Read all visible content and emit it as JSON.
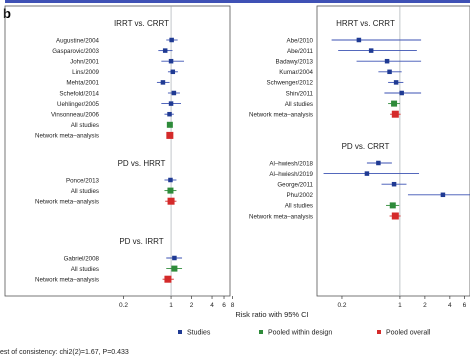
{
  "panel_letter": "b",
  "x_axis_title": "Risk ratio with 95% CI",
  "consistency_text": "est of consistency: chi2(2)=1.67, P=0.433",
  "legend": [
    {
      "label": "Studies",
      "color": "#1f3a93"
    },
    {
      "label": "Pooled within design",
      "color": "#2e8b3a"
    },
    {
      "label": "Pooled overall",
      "color": "#d42a2a"
    }
  ],
  "colors": {
    "study": "#1f3a93",
    "pooled_design": "#2e8b3a",
    "pooled_overall": "#d42a2a",
    "ci_line": "#3b52b3",
    "frame": "#555555",
    "top_band": "#3f51b5"
  },
  "chart_data": [
    {
      "type": "forest",
      "scale": "log",
      "xlim": [
        0.1,
        9
      ],
      "x_ticks": [
        0.2,
        1,
        2,
        4,
        6,
        8
      ],
      "reference_line": 1,
      "groups": [
        {
          "title": "IRRT vs. CRRT",
          "rows": [
            {
              "label": "Augustine/2004",
              "kind": "study",
              "estimate": 1.02,
              "lower": 0.85,
              "upper": 1.25
            },
            {
              "label": "Gasparovic/2003",
              "kind": "study",
              "estimate": 0.82,
              "lower": 0.65,
              "upper": 1.05
            },
            {
              "label": "John/2001",
              "kind": "study",
              "estimate": 1.0,
              "lower": 0.72,
              "upper": 1.55
            },
            {
              "label": "Lins/2009",
              "kind": "study",
              "estimate": 1.06,
              "lower": 0.9,
              "upper": 1.26
            },
            {
              "label": "Mehta/2001",
              "kind": "study",
              "estimate": 0.76,
              "lower": 0.62,
              "upper": 0.95
            },
            {
              "label": "Schefold/2014",
              "kind": "study",
              "estimate": 1.1,
              "lower": 0.9,
              "upper": 1.35
            },
            {
              "label": "Uehlinger/2005",
              "kind": "study",
              "estimate": 1.0,
              "lower": 0.72,
              "upper": 1.4
            },
            {
              "label": "Vinsonneau/2006",
              "kind": "study",
              "estimate": 0.95,
              "lower": 0.8,
              "upper": 1.1
            },
            {
              "label": "All studies",
              "kind": "pooled_design",
              "estimate": 0.96,
              "lower": 0.89,
              "upper": 1.05
            },
            {
              "label": "Network meta–analysis",
              "kind": "pooled_overall",
              "estimate": 0.96,
              "lower": 0.88,
              "upper": 1.04
            }
          ]
        },
        {
          "title": "PD vs. HRRT",
          "rows": [
            {
              "label": "Ponce/2013",
              "kind": "study",
              "estimate": 0.98,
              "lower": 0.8,
              "upper": 1.2
            },
            {
              "label": "All studies",
              "kind": "pooled_design",
              "estimate": 0.98,
              "lower": 0.8,
              "upper": 1.2
            },
            {
              "label": "Network meta–analysis",
              "kind": "pooled_overall",
              "estimate": 1.0,
              "lower": 0.82,
              "upper": 1.2
            }
          ]
        },
        {
          "title": "PD vs. IRRT",
          "rows": [
            {
              "label": "Gabriel/2008",
              "kind": "study",
              "estimate": 1.12,
              "lower": 0.85,
              "upper": 1.45
            },
            {
              "label": "All studies",
              "kind": "pooled_design",
              "estimate": 1.12,
              "lower": 0.85,
              "upper": 1.45
            },
            {
              "label": "Network meta–analysis",
              "kind": "pooled_overall",
              "estimate": 0.9,
              "lower": 0.75,
              "upper": 1.1
            }
          ]
        }
      ]
    },
    {
      "type": "forest",
      "scale": "log",
      "xlim": [
        0.1,
        7
      ],
      "x_ticks": [
        0.2,
        1,
        2,
        4,
        6
      ],
      "reference_line": 1,
      "groups": [
        {
          "title": "HRRT vs. CRRT",
          "rows": [
            {
              "label": "Abe/2010",
              "kind": "study",
              "estimate": 0.32,
              "lower": 0.15,
              "upper": 1.8
            },
            {
              "label": "Abe/2011",
              "kind": "study",
              "estimate": 0.45,
              "lower": 0.18,
              "upper": 1.6
            },
            {
              "label": "Badawy/2013",
              "kind": "study",
              "estimate": 0.7,
              "lower": 0.3,
              "upper": 1.8
            },
            {
              "label": "Kumar/2004",
              "kind": "study",
              "estimate": 0.75,
              "lower": 0.55,
              "upper": 1.05
            },
            {
              "label": "Schwenger/2012",
              "kind": "study",
              "estimate": 0.9,
              "lower": 0.72,
              "upper": 1.1
            },
            {
              "label": "Shin/2011",
              "kind": "study",
              "estimate": 1.05,
              "lower": 0.65,
              "upper": 1.8
            },
            {
              "label": "All studies",
              "kind": "pooled_design",
              "estimate": 0.85,
              "lower": 0.72,
              "upper": 1.0
            },
            {
              "label": "Network meta–analysis",
              "kind": "pooled_overall",
              "estimate": 0.88,
              "lower": 0.76,
              "upper": 1.02
            }
          ]
        },
        {
          "title": "PD vs. CRRT",
          "rows": [
            {
              "label": "Al–hwiesh/2018",
              "kind": "study",
              "estimate": 0.55,
              "lower": 0.4,
              "upper": 0.8
            },
            {
              "label": "Al–hwiesh/2019",
              "kind": "study",
              "estimate": 0.4,
              "lower": 0.12,
              "upper": 1.7
            },
            {
              "label": "George/2011",
              "kind": "study",
              "estimate": 0.85,
              "lower": 0.6,
              "upper": 1.2
            },
            {
              "label": "Phu/2002",
              "kind": "study",
              "estimate": 3.3,
              "lower": 1.25,
              "upper": 7.0
            },
            {
              "label": "All studies",
              "kind": "pooled_design",
              "estimate": 0.82,
              "lower": 0.68,
              "upper": 0.98
            },
            {
              "label": "Network meta–analysis",
              "kind": "pooled_overall",
              "estimate": 0.88,
              "lower": 0.75,
              "upper": 1.02
            }
          ]
        }
      ]
    }
  ]
}
